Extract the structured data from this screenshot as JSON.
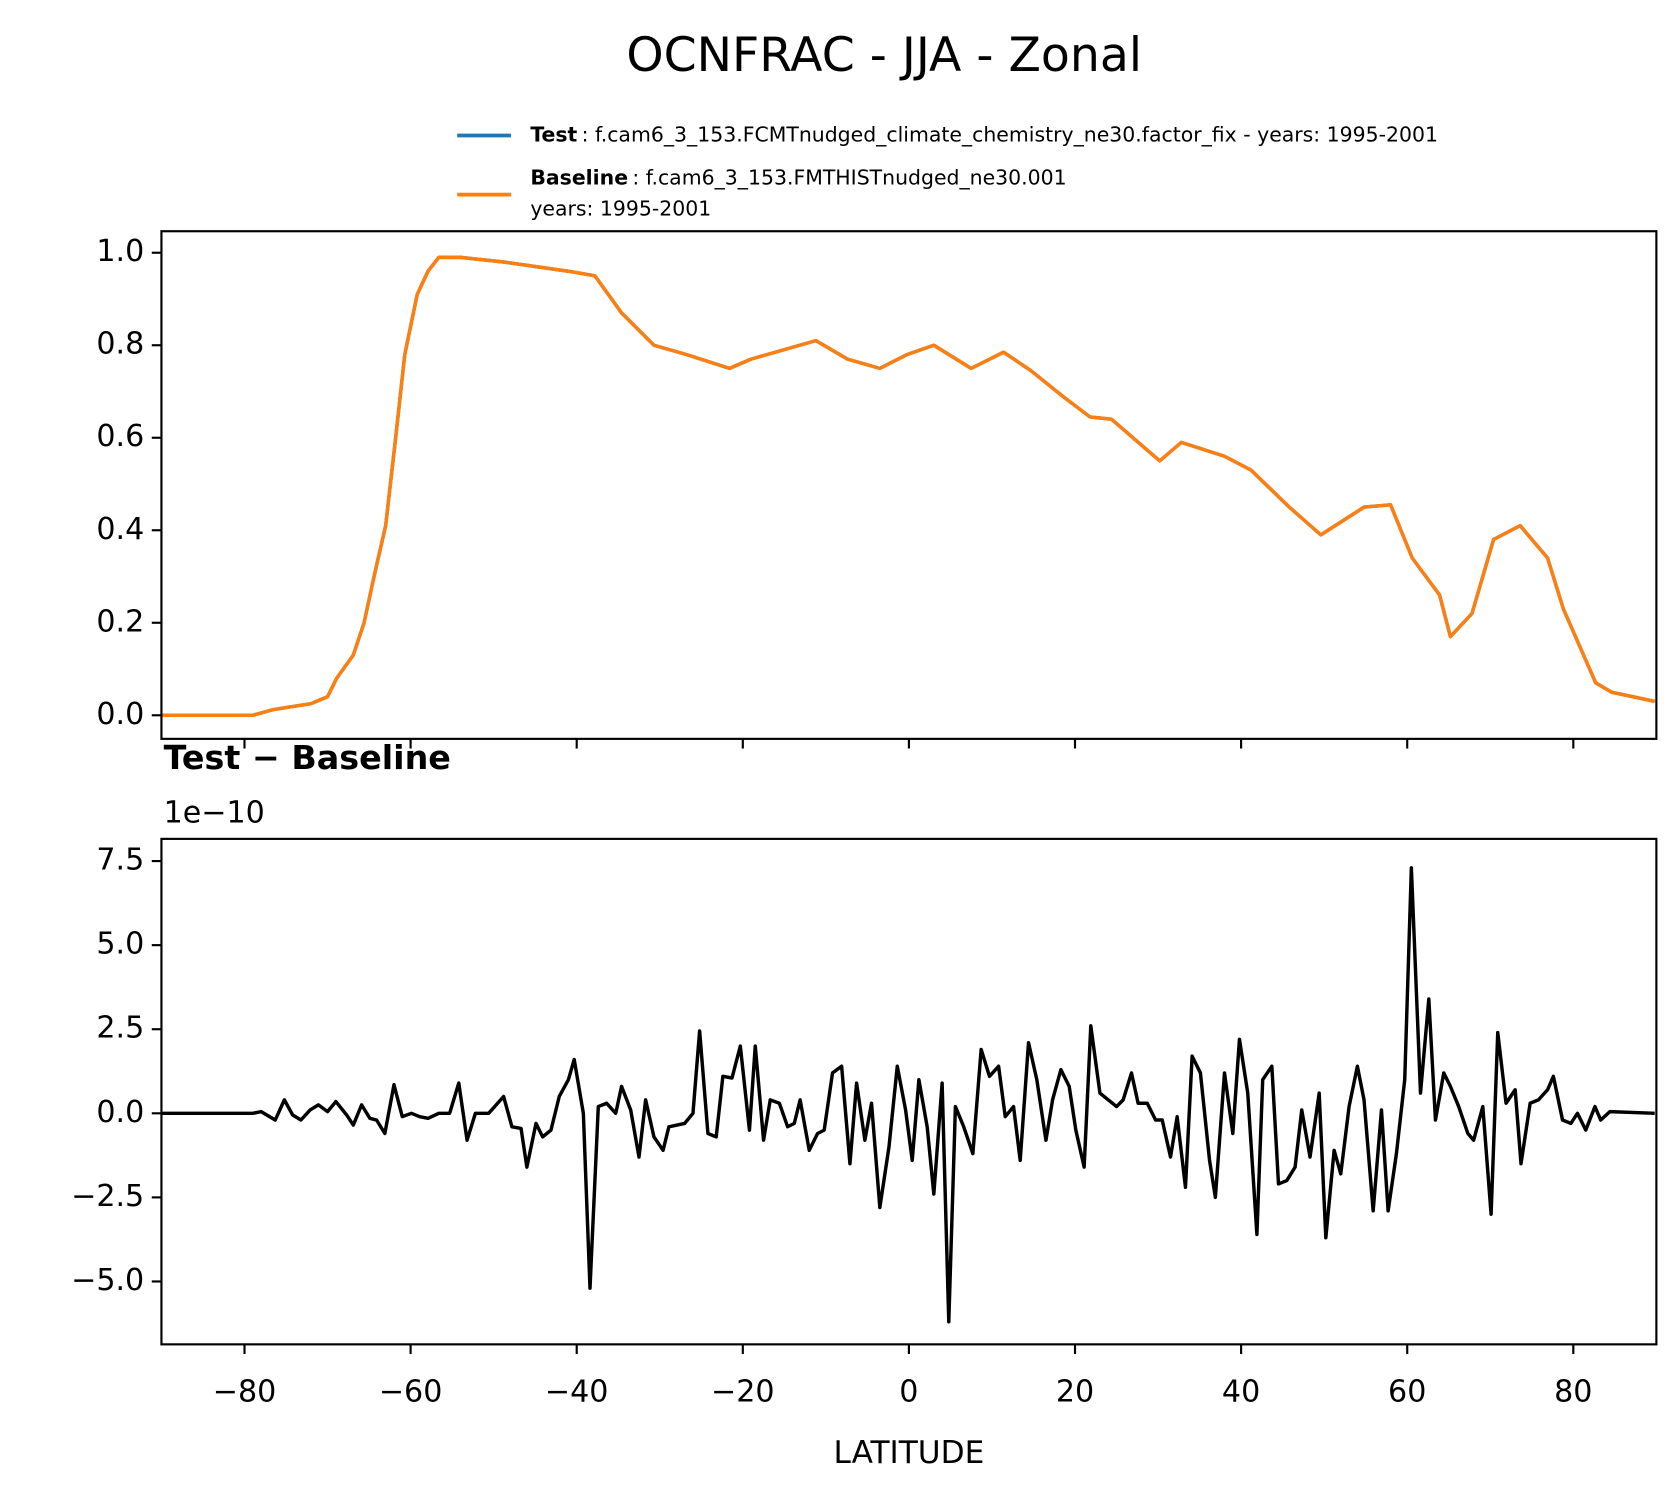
{
  "title": "OCNFRAC - JJA - Zonal",
  "chart_data": [
    {
      "type": "line",
      "x": [
        -90,
        -79,
        -76.6,
        -72,
        -70,
        -68.9,
        -66.9,
        -65.6,
        -64.4,
        -63,
        -61.8,
        -60.7,
        -59.2,
        -57.9,
        -56.6,
        -54,
        -48.8,
        -41,
        -37.8,
        -34.6,
        -30.7,
        -26.8,
        -21.6,
        -19,
        -11.2,
        -7.4,
        -3.5,
        -0.2,
        3,
        7.5,
        11.4,
        14.7,
        18.5,
        21.8,
        24.4,
        30.2,
        32.8,
        38,
        41.2,
        45.8,
        49.6,
        54.8,
        58,
        60.6,
        63.9,
        65.2,
        67.8,
        70.4,
        73.6,
        76.9,
        78.8,
        82.7,
        84.6,
        89.8
      ],
      "series": [
        {
          "name": "Test",
          "label": ": f.cam6_3_153.FCMTnudged_climate_chemistry_ne30.factor_fix - years: 1995-2001",
          "color": "#1f77b4",
          "values": [
            0,
            0,
            0.012,
            0.025,
            0.04,
            0.08,
            0.13,
            0.2,
            0.3,
            0.41,
            0.6,
            0.78,
            0.91,
            0.96,
            0.99,
            0.99,
            0.98,
            0.96,
            0.95,
            0.87,
            0.8,
            0.78,
            0.75,
            0.77,
            0.81,
            0.77,
            0.75,
            0.78,
            0.8,
            0.75,
            0.785,
            0.745,
            0.69,
            0.645,
            0.64,
            0.55,
            0.59,
            0.56,
            0.53,
            0.45,
            0.39,
            0.45,
            0.455,
            0.34,
            0.26,
            0.17,
            0.22,
            0.38,
            0.41,
            0.34,
            0.23,
            0.07,
            0.05,
            0.03
          ]
        },
        {
          "name": "Baseline",
          "label_lines": [
            ": f.cam6_3_153.FMTHISTnudged_ne30.001",
            "years: 1995-2001"
          ],
          "color": "#ff7f0e",
          "values": [
            0,
            0,
            0.012,
            0.025,
            0.04,
            0.08,
            0.13,
            0.2,
            0.3,
            0.41,
            0.6,
            0.78,
            0.91,
            0.96,
            0.99,
            0.99,
            0.98,
            0.96,
            0.95,
            0.87,
            0.8,
            0.78,
            0.75,
            0.77,
            0.81,
            0.77,
            0.75,
            0.78,
            0.8,
            0.75,
            0.785,
            0.745,
            0.69,
            0.645,
            0.64,
            0.55,
            0.59,
            0.56,
            0.53,
            0.45,
            0.39,
            0.45,
            0.455,
            0.34,
            0.26,
            0.17,
            0.22,
            0.38,
            0.41,
            0.34,
            0.23,
            0.07,
            0.05,
            0.03
          ]
        }
      ],
      "xlim": [
        -90,
        90
      ],
      "xticks": [
        -80,
        -60,
        -40,
        -20,
        0,
        20,
        40,
        60,
        80
      ],
      "xticklabels": false,
      "ylim": [
        -0.051,
        1.0465
      ],
      "yticks": [
        {
          "value": 0,
          "label": "0.0"
        },
        0.2,
        0.4,
        0.6,
        0.8,
        {
          "value": 1,
          "label": "1.0"
        }
      ]
    },
    {
      "type": "line",
      "title": "Test − Baseline",
      "offset_label": "1e−10",
      "xlabel": "LATITUDE",
      "color": "#000000",
      "x": [
        -90,
        -79,
        -78,
        -76.3,
        -75.2,
        -74.2,
        -73.2,
        -72.1,
        -71.1,
        -70,
        -69,
        -67.7,
        -66.9,
        -65.9,
        -64.9,
        -64.1,
        -63.1,
        -62,
        -61,
        -59.9,
        -58.9,
        -57.9,
        -56.6,
        -55.3,
        -54.2,
        -53.2,
        -52.2,
        -50.6,
        -48.8,
        -47.8,
        -46.7,
        -46,
        -44.9,
        -44.1,
        -43.1,
        -42.1,
        -41,
        -40.3,
        -39.2,
        -38.4,
        -37.4,
        -36.4,
        -35.3,
        -34.6,
        -33.5,
        -32.5,
        -31.7,
        -30.7,
        -29.6,
        -28.9,
        -27,
        -26,
        -25.2,
        -24.2,
        -23.2,
        -22.4,
        -21.3,
        -20.3,
        -19.2,
        -18.5,
        -17.5,
        -16.7,
        -15.6,
        -14.6,
        -13.8,
        -13.1,
        -12,
        -11,
        -10.2,
        -9.2,
        -8.1,
        -7.1,
        -6.3,
        -5.3,
        -4.5,
        -3.5,
        -2.4,
        -1.4,
        -0.4,
        0.4,
        1.2,
        2.2,
        3,
        4,
        4.8,
        5.6,
        6.6,
        7.7,
        8.7,
        9.7,
        10.8,
        11.6,
        12.6,
        13.4,
        14.4,
        15.4,
        16.5,
        17.3,
        18.3,
        19.3,
        20.1,
        21.1,
        21.9,
        23,
        25,
        25.8,
        26.8,
        27.6,
        28.7,
        29.7,
        30.5,
        31.5,
        32.3,
        33.3,
        34.1,
        35.1,
        36.2,
        36.9,
        38,
        39,
        39.8,
        40.8,
        41.9,
        42.6,
        43.7,
        44.5,
        45.5,
        46.5,
        47.3,
        48.3,
        49.4,
        50.2,
        51.2,
        52,
        53,
        54,
        54.8,
        55.9,
        56.9,
        57.7,
        58.7,
        59.7,
        60.5,
        61.6,
        62.6,
        63.4,
        64.4,
        65.2,
        66.2,
        67.3,
        68,
        69.1,
        70.1,
        70.9,
        71.9,
        73,
        73.7,
        74.8,
        75.8,
        76.9,
        77.6,
        78.7,
        79.7,
        80.5,
        81.5,
        82.6,
        83.3,
        84.4,
        89.8
      ],
      "values": [
        0,
        0,
        0.05,
        -0.2,
        0.4,
        -0.05,
        -0.2,
        0.1,
        0.25,
        0.05,
        0.35,
        -0.05,
        -0.35,
        0.25,
        -0.15,
        -0.2,
        -0.6,
        0.85,
        -0.1,
        0,
        -0.1,
        -0.15,
        0,
        0,
        0.9,
        -0.8,
        0,
        0,
        0.5,
        -0.4,
        -0.45,
        -1.6,
        -0.3,
        -0.7,
        -0.5,
        0.5,
        1.0,
        1.6,
        0,
        -5.2,
        0.2,
        0.3,
        0,
        0.8,
        0.1,
        -1.3,
        0.4,
        -0.7,
        -1.1,
        -0.4,
        -0.3,
        0,
        2.45,
        -0.6,
        -0.7,
        1.1,
        1.05,
        2.0,
        -0.5,
        2.0,
        -0.8,
        0.4,
        0.3,
        -0.4,
        -0.3,
        0.4,
        -1.1,
        -0.6,
        -0.5,
        1.2,
        1.4,
        -1.5,
        0.9,
        -0.8,
        0.3,
        -2.8,
        -1.0,
        1.4,
        0.1,
        -1.4,
        1.0,
        -0.4,
        -2.4,
        0.9,
        -6.2,
        0.2,
        -0.4,
        -1.2,
        1.9,
        1.1,
        1.4,
        -0.1,
        0.2,
        -1.4,
        2.1,
        1.0,
        -0.8,
        0.4,
        1.3,
        0.8,
        -0.5,
        -1.6,
        2.6,
        0.6,
        0.2,
        0.4,
        1.2,
        0.3,
        0.3,
        -0.2,
        -0.2,
        -1.3,
        -0.1,
        -2.2,
        1.7,
        1.2,
        -1.4,
        -2.5,
        1.2,
        -0.6,
        2.2,
        0.6,
        -3.6,
        1.0,
        1.4,
        -2.1,
        -2.0,
        -1.6,
        0.1,
        -1.3,
        0.6,
        -3.7,
        -1.1,
        -1.8,
        0.2,
        1.4,
        0.4,
        -2.9,
        0.1,
        -2.9,
        -1.2,
        1.0,
        7.3,
        0.6,
        3.4,
        -0.2,
        1.2,
        0.8,
        0.2,
        -0.6,
        -0.8,
        0.2,
        -3.0,
        2.4,
        0.3,
        0.7,
        -1.5,
        0.3,
        0.4,
        0.7,
        1.1,
        -0.2,
        -0.3,
        0,
        -0.5,
        0.2,
        -0.2,
        0.05,
        0
      ],
      "xlim": [
        -90,
        90
      ],
      "xticks": [
        {
          "value": -80,
          "label": "−80"
        },
        {
          "value": -60,
          "label": "−60"
        },
        {
          "value": -40,
          "label": "−40"
        },
        {
          "value": -20,
          "label": "−20"
        },
        0,
        20,
        40,
        60,
        80
      ],
      "ylim": [
        -6.87,
        8.16
      ],
      "yticks": [
        {
          "value": -5,
          "label": "−5.0"
        },
        {
          "value": -2.5,
          "label": "−2.5"
        },
        {
          "value": 0,
          "label": "0.0"
        },
        2.5,
        {
          "value": 5,
          "label": "5.0"
        },
        7.5
      ]
    }
  ]
}
